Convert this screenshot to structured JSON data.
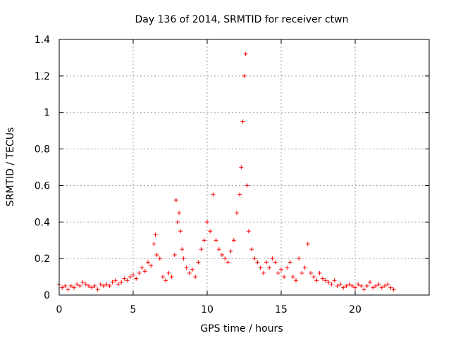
{
  "chart_data": {
    "type": "scatter",
    "title": "Day 136 of 2014, SRMTID for receiver ctwn",
    "xlabel": "GPS time / hours",
    "ylabel": "SRMTID / TECUs",
    "xlim": [
      0,
      25
    ],
    "ylim": [
      0,
      1.4
    ],
    "x_ticks": [
      0,
      5,
      10,
      15,
      20
    ],
    "x_tick_labels": [
      "0",
      "5",
      "10",
      "15",
      "20"
    ],
    "y_ticks": [
      0,
      0.2,
      0.4,
      0.6,
      0.8,
      1,
      1.2,
      1.4
    ],
    "y_tick_labels": [
      "0",
      "0.2",
      "0.4",
      "0.6",
      "0.8",
      "1",
      "1.2",
      "1.4"
    ],
    "grid": true,
    "marker": "plus",
    "color": "#ff0000",
    "series": [
      {
        "name": "SRMTID",
        "points": [
          [
            0.0,
            0.06
          ],
          [
            0.2,
            0.04
          ],
          [
            0.4,
            0.05
          ],
          [
            0.6,
            0.03
          ],
          [
            0.8,
            0.05
          ],
          [
            1.0,
            0.04
          ],
          [
            1.2,
            0.06
          ],
          [
            1.4,
            0.05
          ],
          [
            1.6,
            0.07
          ],
          [
            1.8,
            0.06
          ],
          [
            2.0,
            0.05
          ],
          [
            2.2,
            0.04
          ],
          [
            2.4,
            0.05
          ],
          [
            2.6,
            0.03
          ],
          [
            2.8,
            0.06
          ],
          [
            3.0,
            0.05
          ],
          [
            3.2,
            0.06
          ],
          [
            3.4,
            0.05
          ],
          [
            3.6,
            0.07
          ],
          [
            3.8,
            0.08
          ],
          [
            4.0,
            0.06
          ],
          [
            4.2,
            0.07
          ],
          [
            4.4,
            0.09
          ],
          [
            4.6,
            0.08
          ],
          [
            4.8,
            0.1
          ],
          [
            5.0,
            0.11
          ],
          [
            5.2,
            0.09
          ],
          [
            5.4,
            0.12
          ],
          [
            5.6,
            0.15
          ],
          [
            5.8,
            0.13
          ],
          [
            6.0,
            0.18
          ],
          [
            6.2,
            0.16
          ],
          [
            6.4,
            0.28
          ],
          [
            6.5,
            0.33
          ],
          [
            6.6,
            0.22
          ],
          [
            6.8,
            0.2
          ],
          [
            7.0,
            0.1
          ],
          [
            7.2,
            0.08
          ],
          [
            7.4,
            0.12
          ],
          [
            7.6,
            0.1
          ],
          [
            7.8,
            0.22
          ],
          [
            7.9,
            0.52
          ],
          [
            8.0,
            0.4
          ],
          [
            8.1,
            0.45
          ],
          [
            8.2,
            0.35
          ],
          [
            8.3,
            0.25
          ],
          [
            8.4,
            0.2
          ],
          [
            8.6,
            0.15
          ],
          [
            8.8,
            0.12
          ],
          [
            9.0,
            0.14
          ],
          [
            9.2,
            0.1
          ],
          [
            9.4,
            0.18
          ],
          [
            9.6,
            0.25
          ],
          [
            9.8,
            0.3
          ],
          [
            10.0,
            0.4
          ],
          [
            10.2,
            0.35
          ],
          [
            10.4,
            0.55
          ],
          [
            10.6,
            0.3
          ],
          [
            10.8,
            0.25
          ],
          [
            11.0,
            0.22
          ],
          [
            11.2,
            0.2
          ],
          [
            11.4,
            0.18
          ],
          [
            11.6,
            0.24
          ],
          [
            11.8,
            0.3
          ],
          [
            12.0,
            0.45
          ],
          [
            12.2,
            0.55
          ],
          [
            12.3,
            0.7
          ],
          [
            12.4,
            0.95
          ],
          [
            12.5,
            1.2
          ],
          [
            12.6,
            1.32
          ],
          [
            12.7,
            0.6
          ],
          [
            12.8,
            0.35
          ],
          [
            13.0,
            0.25
          ],
          [
            13.2,
            0.2
          ],
          [
            13.4,
            0.18
          ],
          [
            13.6,
            0.15
          ],
          [
            13.8,
            0.12
          ],
          [
            14.0,
            0.18
          ],
          [
            14.2,
            0.15
          ],
          [
            14.4,
            0.2
          ],
          [
            14.6,
            0.18
          ],
          [
            14.8,
            0.12
          ],
          [
            15.0,
            0.14
          ],
          [
            15.2,
            0.1
          ],
          [
            15.4,
            0.15
          ],
          [
            15.6,
            0.18
          ],
          [
            15.8,
            0.1
          ],
          [
            16.0,
            0.08
          ],
          [
            16.2,
            0.2
          ],
          [
            16.4,
            0.12
          ],
          [
            16.6,
            0.15
          ],
          [
            16.8,
            0.28
          ],
          [
            17.0,
            0.12
          ],
          [
            17.2,
            0.1
          ],
          [
            17.4,
            0.08
          ],
          [
            17.6,
            0.12
          ],
          [
            17.8,
            0.09
          ],
          [
            18.0,
            0.08
          ],
          [
            18.2,
            0.07
          ],
          [
            18.4,
            0.06
          ],
          [
            18.6,
            0.08
          ],
          [
            18.8,
            0.05
          ],
          [
            19.0,
            0.06
          ],
          [
            19.2,
            0.04
          ],
          [
            19.4,
            0.05
          ],
          [
            19.6,
            0.06
          ],
          [
            19.8,
            0.05
          ],
          [
            20.0,
            0.04
          ],
          [
            20.2,
            0.06
          ],
          [
            20.4,
            0.05
          ],
          [
            20.6,
            0.03
          ],
          [
            20.8,
            0.05
          ],
          [
            21.0,
            0.07
          ],
          [
            21.2,
            0.04
          ],
          [
            21.4,
            0.05
          ],
          [
            21.6,
            0.06
          ],
          [
            21.8,
            0.04
          ],
          [
            22.0,
            0.05
          ],
          [
            22.2,
            0.06
          ],
          [
            22.4,
            0.04
          ],
          [
            22.6,
            0.03
          ]
        ]
      }
    ]
  }
}
